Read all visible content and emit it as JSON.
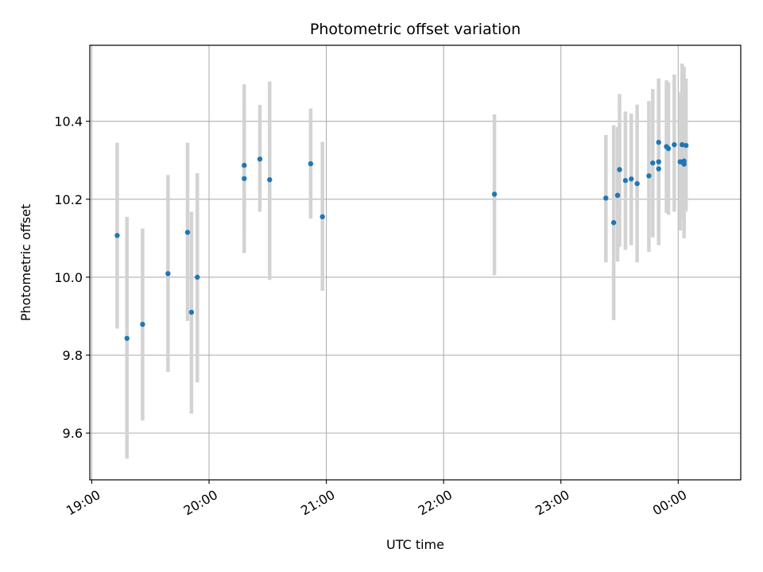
{
  "chart_data": {
    "type": "scatter",
    "title": "Photometric offset variation",
    "xlabel": "UTC time",
    "ylabel": "Photometric offset",
    "x_unit": "time (HH:MM)",
    "xlim": [
      "18:59",
      "00:32"
    ],
    "ylim": [
      9.48,
      10.595
    ],
    "grid": true,
    "x_ticks": [
      "19:00",
      "20:00",
      "21:00",
      "22:00",
      "23:00",
      "00:00"
    ],
    "y_ticks": [
      "9.6",
      "9.8",
      "10.0",
      "10.2",
      "10.4"
    ],
    "colors": {
      "points": "#1f77b4",
      "error_bars": "#d3d3d3",
      "grid": "#b0b0b0",
      "axes": "#000000"
    },
    "points": [
      {
        "x": "19:13",
        "y": 10.107,
        "ylo": 9.868,
        "yhi": 10.345
      },
      {
        "x": "19:18",
        "y": 9.843,
        "ylo": 9.534,
        "yhi": 10.155
      },
      {
        "x": "19:26",
        "y": 9.879,
        "ylo": 9.632,
        "yhi": 10.125
      },
      {
        "x": "19:39",
        "y": 10.009,
        "ylo": 9.757,
        "yhi": 10.262
      },
      {
        "x": "19:49",
        "y": 10.115,
        "ylo": 9.888,
        "yhi": 10.345
      },
      {
        "x": "19:51",
        "y": 9.91,
        "ylo": 9.65,
        "yhi": 10.168
      },
      {
        "x": "19:54",
        "y": 10.0,
        "ylo": 9.73,
        "yhi": 10.267
      },
      {
        "x": "20:18",
        "y": 10.287,
        "ylo": 10.1,
        "yhi": 10.495
      },
      {
        "x": "20:18",
        "y": 10.253,
        "ylo": 10.062,
        "yhi": 10.443
      },
      {
        "x": "20:26",
        "y": 10.303,
        "ylo": 10.168,
        "yhi": 10.442
      },
      {
        "x": "20:31",
        "y": 10.25,
        "ylo": 9.993,
        "yhi": 10.502
      },
      {
        "x": "20:52",
        "y": 10.291,
        "ylo": 10.15,
        "yhi": 10.433
      },
      {
        "x": "20:58",
        "y": 10.155,
        "ylo": 9.965,
        "yhi": 10.347
      },
      {
        "x": "22:26",
        "y": 10.213,
        "ylo": 10.005,
        "yhi": 10.418
      },
      {
        "x": "23:23",
        "y": 10.203,
        "ylo": 10.038,
        "yhi": 10.365
      },
      {
        "x": "23:27",
        "y": 10.14,
        "ylo": 9.89,
        "yhi": 10.39
      },
      {
        "x": "23:29",
        "y": 10.21,
        "ylo": 10.04,
        "yhi": 10.385
      },
      {
        "x": "23:30",
        "y": 10.276,
        "ylo": 10.078,
        "yhi": 10.47
      },
      {
        "x": "23:33",
        "y": 10.248,
        "ylo": 10.07,
        "yhi": 10.425
      },
      {
        "x": "23:36",
        "y": 10.252,
        "ylo": 10.082,
        "yhi": 10.42
      },
      {
        "x": "23:39",
        "y": 10.24,
        "ylo": 10.038,
        "yhi": 10.443
      },
      {
        "x": "23:45",
        "y": 10.26,
        "ylo": 10.065,
        "yhi": 10.452
      },
      {
        "x": "23:47",
        "y": 10.293,
        "ylo": 10.102,
        "yhi": 10.483
      },
      {
        "x": "23:50",
        "y": 10.346,
        "ylo": 10.18,
        "yhi": 10.51
      },
      {
        "x": "23:50",
        "y": 10.296,
        "ylo": 10.108,
        "yhi": 10.508
      },
      {
        "x": "23:50",
        "y": 10.278,
        "ylo": 10.082,
        "yhi": 10.475
      },
      {
        "x": "23:54",
        "y": 10.335,
        "ylo": 10.165,
        "yhi": 10.505
      },
      {
        "x": "23:55",
        "y": 10.33,
        "ylo": 10.16,
        "yhi": 10.5
      },
      {
        "x": "23:58",
        "y": 10.34,
        "ylo": 10.168,
        "yhi": 10.52
      },
      {
        "x": "00:01",
        "y": 10.296,
        "ylo": 10.12,
        "yhi": 10.475
      },
      {
        "x": "00:02",
        "y": 10.34,
        "ylo": 10.15,
        "yhi": 10.548
      },
      {
        "x": "00:03",
        "y": 10.29,
        "ylo": 10.1,
        "yhi": 10.54
      },
      {
        "x": "00:03",
        "y": 10.298,
        "ylo": 10.118,
        "yhi": 10.48
      },
      {
        "x": "00:04",
        "y": 10.338,
        "ylo": 10.168,
        "yhi": 10.51
      }
    ]
  }
}
